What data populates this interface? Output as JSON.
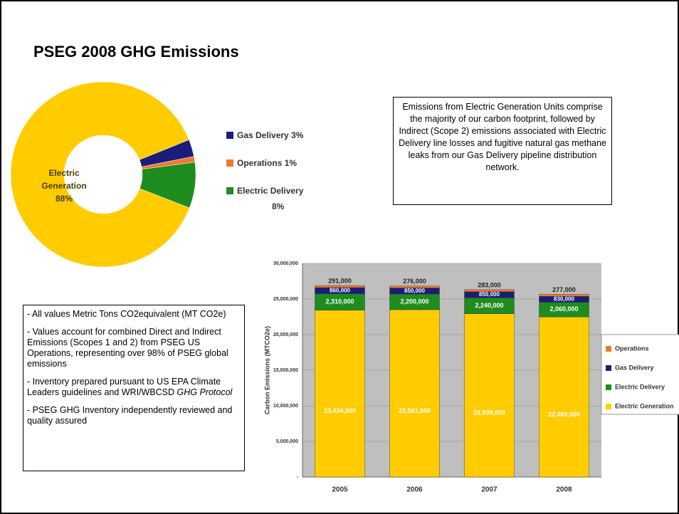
{
  "title": "PSEG 2008 GHG Emissions",
  "callout": "Emissions from Electric Generation Units comprise the majority of our carbon footprint, followed by Indirect (Scope 2) emissions associated with Electric Delivery line losses and fugitive natural gas methane leaks from our Gas Delivery pipeline distribution network.",
  "notes": [
    "- All values Metric Tons CO2equivalent (MT CO2e)",
    "- Values account for combined Direct and Indirect Emissions (Scopes 1 and 2) from PSEG US Operations, representing over 98% of PSEG global emissions",
    [
      "- Inventory prepared pursuant to US EPA Climate Leaders guidelines and WRI/WBCSD",
      "GHG Protocol"
    ],
    "- PSEG GHG Inventory independently reviewed and quality assured"
  ],
  "chart_data": [
    {
      "type": "pie",
      "donut": true,
      "categories": [
        "Gas Delivery",
        "Operations",
        "Electric Delivery",
        "Electric Generation"
      ],
      "values": [
        3,
        1,
        8,
        88
      ],
      "value_labels": [
        "3%",
        "1%",
        "8%",
        "88%"
      ],
      "colors": [
        "#1c1c7a",
        "#f07a2a",
        "#1e8c1e",
        "#ffcc00"
      ]
    },
    {
      "type": "bar",
      "stacked": true,
      "ylabel": "Carbon Emissions (MTCO2e)",
      "categories": [
        "2005",
        "2006",
        "2007",
        "2008"
      ],
      "series": [
        {
          "name": "Electric Generation",
          "color": "#ffcc00",
          "values": [
            23434000,
            23501000,
            22939000,
            22493000
          ],
          "value_labels": [
            "23,434,000",
            "23,501,000",
            "22,939,000",
            "22,493,000"
          ]
        },
        {
          "name": "Electric Delivery",
          "color": "#1e8c1e",
          "values": [
            2310000,
            2200000,
            2240000,
            2060000
          ],
          "value_labels": [
            "2,310,000",
            "2,200,000",
            "2,240,000",
            "2,060,000"
          ]
        },
        {
          "name": "Gas Delivery",
          "color": "#1c1c7a",
          "values": [
            860000,
            850000,
            850000,
            830000
          ],
          "value_labels": [
            "860,000",
            "850,000",
            "850,000",
            "830,000"
          ]
        },
        {
          "name": "Operations",
          "color": "#f07a2a",
          "values": [
            291000,
            276000,
            283000,
            277000
          ],
          "value_labels": [
            "291,000",
            "276,000",
            "283,000",
            "277,000"
          ]
        }
      ],
      "ylim": [
        0,
        30000000
      ],
      "yticks": [
        {
          "value": 0,
          "label": "-"
        },
        {
          "value": 5000000,
          "label": "5,000,000"
        },
        {
          "value": 10000000,
          "label": "10,000,000"
        },
        {
          "value": 15000000,
          "label": "15,000,000"
        },
        {
          "value": 20000000,
          "label": "20,000,000"
        },
        {
          "value": 25000000,
          "label": "25,000,000"
        },
        {
          "value": 30000000,
          "label": "30,000,000"
        }
      ],
      "background": "#bfbfbf"
    }
  ]
}
